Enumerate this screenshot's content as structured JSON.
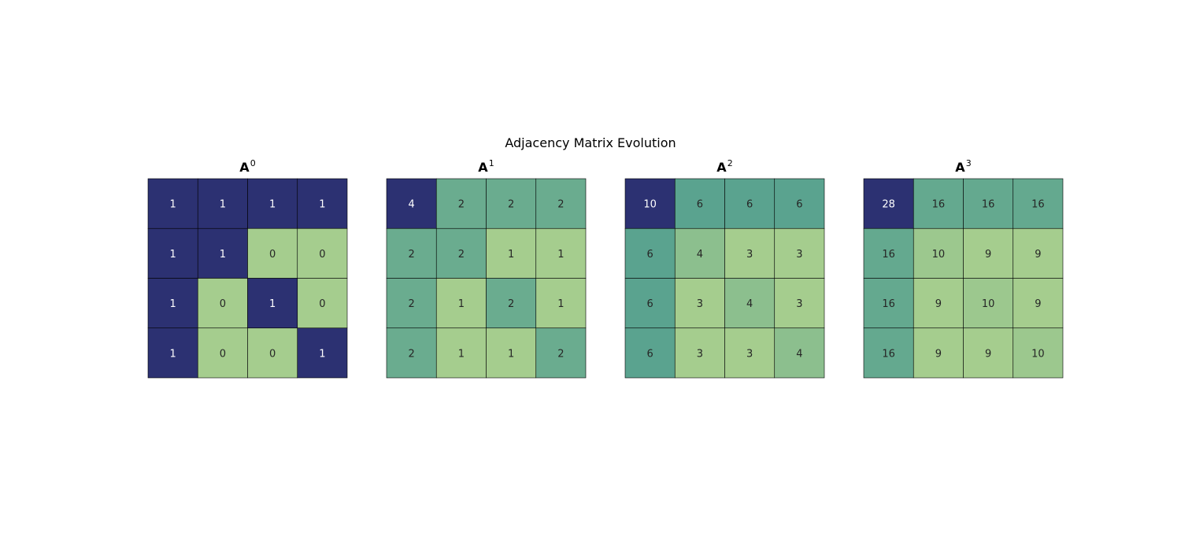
{
  "chart_data": {
    "type": "heatmap",
    "title": "Adjacency Matrix Evolution",
    "panels": [
      {
        "title_base": "A",
        "title_exponent": "0",
        "colormap": "crest",
        "values": [
          [
            1,
            1,
            1,
            1
          ],
          [
            1,
            1,
            0,
            0
          ],
          [
            1,
            0,
            1,
            0
          ],
          [
            1,
            0,
            0,
            1
          ]
        ]
      },
      {
        "title_base": "A",
        "title_exponent": "1",
        "colormap": "crest",
        "values": [
          [
            4,
            2,
            2,
            2
          ],
          [
            2,
            2,
            1,
            1
          ],
          [
            2,
            1,
            2,
            1
          ],
          [
            2,
            1,
            1,
            2
          ]
        ]
      },
      {
        "title_base": "A",
        "title_exponent": "2",
        "colormap": "crest",
        "values": [
          [
            10,
            6,
            6,
            6
          ],
          [
            6,
            4,
            3,
            3
          ],
          [
            6,
            3,
            4,
            3
          ],
          [
            6,
            3,
            3,
            4
          ]
        ]
      },
      {
        "title_base": "A",
        "title_exponent": "3",
        "colormap": "crest",
        "values": [
          [
            28,
            16,
            16,
            16
          ],
          [
            16,
            10,
            9,
            9
          ],
          [
            16,
            9,
            10,
            9
          ],
          [
            16,
            9,
            9,
            10
          ]
        ]
      }
    ],
    "color_low": "#a5cd8e",
    "color_mid": "#4d9c8f",
    "color_high": "#2c3172",
    "grid_line_color": "#000000",
    "text_light": "#ffffff",
    "text_dark": "#262626"
  }
}
